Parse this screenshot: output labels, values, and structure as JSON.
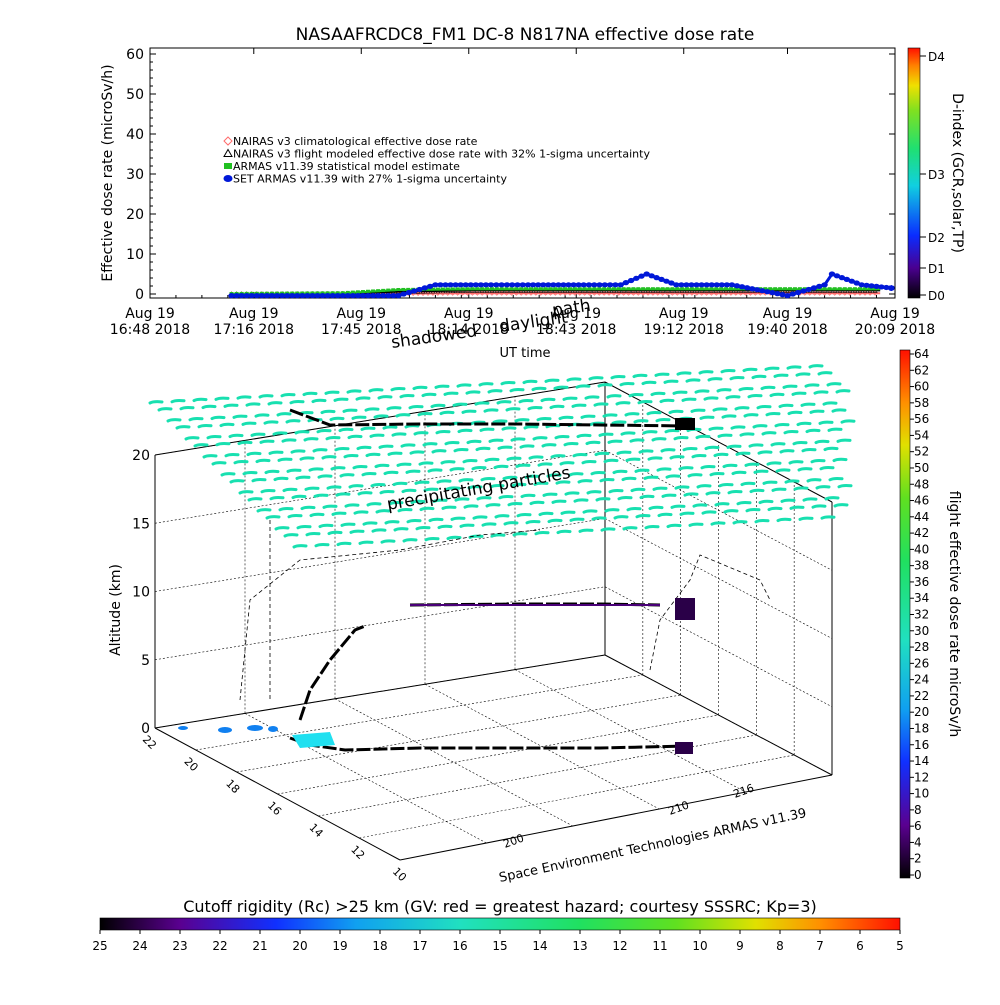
{
  "title": "NASAAFRCDC8_FM1 DC-8   N817NA effective dose rate",
  "top_panel": {
    "ylabel": "Effective dose rate (microSv/h)",
    "xlabel": "UT time",
    "y_ticks": [
      "0",
      "10",
      "20",
      "30",
      "40",
      "50",
      "60"
    ],
    "x_ticks": [
      {
        "top": "Aug 19",
        "bottom": "16:48 2018"
      },
      {
        "top": "Aug 19",
        "bottom": "17:16 2018"
      },
      {
        "top": "Aug 19",
        "bottom": "17:45 2018"
      },
      {
        "top": "Aug 19",
        "bottom": "18:14 2018"
      },
      {
        "top": "Aug 19",
        "bottom": "18:43 2018"
      },
      {
        "top": "Aug 19",
        "bottom": "19:12 2018"
      },
      {
        "top": "Aug 19",
        "bottom": "19:40 2018"
      },
      {
        "top": "Aug 19",
        "bottom": "20:09 2018"
      }
    ],
    "legend": [
      {
        "label": "NAIRAS v3 climatological effective dose rate",
        "color": "#ff6b6b",
        "marker": "diamond"
      },
      {
        "label": "NAIRAS v3 flight modeled effective dose rate with 32% 1-sigma uncertainty",
        "color": "#000000",
        "marker": "triangle"
      },
      {
        "label": "ARMAS v11.39 statistical model estimate",
        "color": "#22c022",
        "marker": "star"
      },
      {
        "label": "SET ARMAS v11.39 with 27% 1-sigma uncertainty",
        "color": "#0018d8",
        "marker": "dot"
      }
    ],
    "annotations": [
      "shadowed",
      "daylight",
      "path"
    ]
  },
  "dindex_bar": {
    "label": "D-index (GCR,solar,TP)",
    "ticks": [
      "D0",
      "D1",
      "D2",
      "D3",
      "D4"
    ]
  },
  "main_panel": {
    "zlabel": "Altitude (km)",
    "z_ticks": [
      "0",
      "5",
      "10",
      "15",
      "20"
    ],
    "rigidity_ticks": [
      "10",
      "12",
      "14",
      "16",
      "18",
      "20",
      "22"
    ],
    "longitude_ticks": [
      "200",
      "210",
      "216"
    ],
    "annotation": "precipitating particles",
    "credit": "Space Environment Technologies ARMAS v11.39"
  },
  "dose_bar": {
    "label": "flight effective dose rate microSv/h",
    "ticks": [
      "0",
      "2",
      "4",
      "6",
      "8",
      "10",
      "12",
      "14",
      "16",
      "18",
      "20",
      "22",
      "24",
      "26",
      "28",
      "30",
      "32",
      "34",
      "36",
      "38",
      "40",
      "42",
      "44",
      "46",
      "48",
      "50",
      "52",
      "54",
      "56",
      "58",
      "60",
      "62",
      "64"
    ]
  },
  "rigidity_bar": {
    "label": "Cutoff rigidity (Rc) >25 km (GV: red = greatest hazard; courtesy SSSRC; Kp=3)",
    "ticks": [
      "25",
      "24",
      "23",
      "22",
      "21",
      "20",
      "19",
      "18",
      "17",
      "16",
      "15",
      "14",
      "13",
      "12",
      "11",
      "10",
      "9",
      "8",
      "7",
      "6",
      "5"
    ]
  },
  "chart_data": [
    {
      "type": "line",
      "title": "NASAAFRCDC8_FM1 DC-8   N817NA effective dose rate",
      "xlabel": "UT time",
      "ylabel": "Effective dose rate (microSv/h)",
      "ylim": [
        0,
        60
      ],
      "x_ticks": [
        "16:48",
        "17:16",
        "17:45",
        "18:14",
        "18:43",
        "19:12",
        "19:40",
        "20:09"
      ],
      "series": [
        {
          "name": "NAIRAS v3 climatological effective dose rate",
          "x": [
            "17:10",
            "17:40",
            "17:55",
            "18:15",
            "18:40",
            "19:05",
            "19:30",
            "19:50",
            "20:05"
          ],
          "values": [
            0,
            0,
            0.1,
            0.2,
            0.2,
            0.2,
            0.2,
            0.2,
            0.2
          ]
        },
        {
          "name": "NAIRAS v3 flight modeled effective dose rate with 32% 1-sigma uncertainty",
          "x": [
            "17:10",
            "17:40",
            "17:55",
            "18:15",
            "18:40",
            "19:05",
            "19:30",
            "19:50",
            "20:05"
          ],
          "values": [
            0,
            0.1,
            0.6,
            0.9,
            0.9,
            0.9,
            0.9,
            0.9,
            0.9
          ]
        },
        {
          "name": "ARMAS v11.39 statistical model estimate",
          "x": [
            "17:10",
            "17:40",
            "17:55",
            "18:15",
            "18:40",
            "19:05",
            "19:30",
            "19:50",
            "20:05"
          ],
          "values": [
            0,
            0.2,
            1.0,
            1.2,
            1.2,
            1.2,
            1.2,
            1.2,
            1.2
          ]
        },
        {
          "name": "SET ARMAS v11.39 with 27% 1-sigma uncertainty",
          "x": [
            "17:10",
            "17:40",
            "17:55",
            "18:05",
            "18:20",
            "18:30",
            "18:45",
            "18:55",
            "19:02",
            "19:10",
            "19:25",
            "19:40",
            "19:50",
            "19:52",
            "20:00",
            "20:08"
          ],
          "values": [
            -0.4,
            -0.4,
            -0.4,
            2.3,
            2.3,
            2.3,
            2.3,
            2.3,
            5,
            2.3,
            2.3,
            -0.4,
            2.3,
            5,
            2.3,
            1.5
          ]
        }
      ]
    },
    {
      "type": "scatter",
      "title": "",
      "xlabel": "",
      "ylabel": "Altitude (km)",
      "ylim": [
        0,
        20
      ],
      "series": [
        {
          "name": "",
          "x": [],
          "values": []
        }
      ]
    }
  ]
}
